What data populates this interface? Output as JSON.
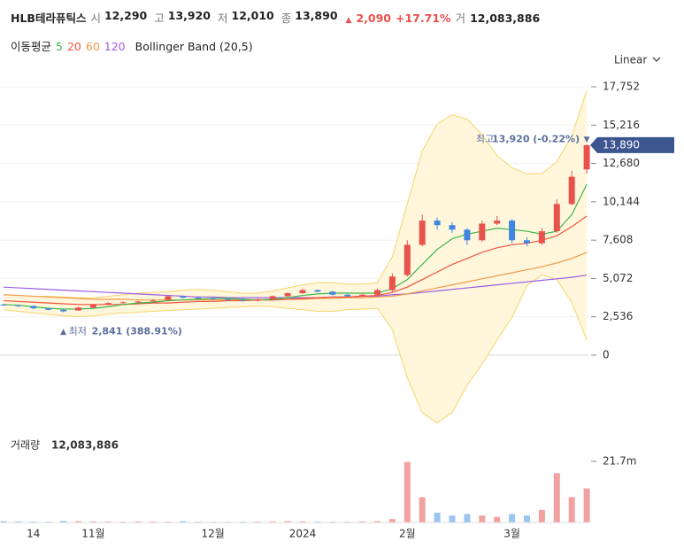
{
  "header": {
    "name": "HLB테라퓨틱스",
    "items": [
      {
        "label": "시",
        "value": "12,290"
      },
      {
        "label": "고",
        "value": "13,920"
      },
      {
        "label": "저",
        "value": "12,010"
      },
      {
        "label": "종",
        "value": "13,890"
      }
    ],
    "change": {
      "arrow": "▲",
      "amount": "2,090",
      "pct": "+17.71%"
    },
    "volume": {
      "label": "거",
      "value": "12,083,886"
    }
  },
  "chart_data": {
    "type": "candlestick",
    "scale_mode": "Linear",
    "ma_label": "이동평균",
    "categories": [
      null,
      null,
      "14",
      null,
      null,
      null,
      "11월",
      null,
      null,
      null,
      null,
      null,
      null,
      null,
      "12월",
      null,
      null,
      null,
      null,
      null,
      "2024",
      null,
      null,
      null,
      null,
      null,
      null,
      "2월",
      null,
      null,
      null,
      null,
      null,
      null,
      "3월",
      null,
      null,
      null,
      null,
      null
    ],
    "open": [
      3350,
      3300,
      3250,
      3100,
      3000,
      2950,
      3150,
      3350,
      3450,
      3500,
      3550,
      3650,
      3900,
      3800,
      3750,
      3700,
      3650,
      3600,
      3700,
      3900,
      4100,
      4300,
      4200,
      4000,
      3900,
      4000,
      4300,
      5300,
      7300,
      8900,
      8600,
      8300,
      7600,
      8700,
      8900,
      7600,
      7400,
      8200,
      10000,
      12290
    ],
    "high": [
      3400,
      3350,
      3300,
      3150,
      3050,
      3200,
      3400,
      3500,
      3550,
      3600,
      3700,
      3950,
      3950,
      3850,
      3800,
      3750,
      3700,
      3750,
      3950,
      4150,
      4400,
      4350,
      4250,
      4050,
      4050,
      4400,
      5400,
      7600,
      9300,
      9100,
      8800,
      8400,
      8900,
      9200,
      9000,
      7800,
      8400,
      10300,
      12200,
      13920
    ],
    "low": [
      3250,
      3200,
      3050,
      2950,
      2841,
      2950,
      3100,
      3300,
      3400,
      3450,
      3500,
      3600,
      3750,
      3700,
      3650,
      3600,
      3550,
      3550,
      3650,
      3850,
      4050,
      4150,
      3950,
      3850,
      3850,
      3950,
      4200,
      5200,
      7200,
      8300,
      8100,
      7300,
      7500,
      8600,
      7400,
      7200,
      7300,
      8100,
      9900,
      12010
    ],
    "close": [
      3300,
      3250,
      3100,
      3000,
      2900,
      3150,
      3350,
      3450,
      3500,
      3550,
      3600,
      3900,
      3800,
      3750,
      3700,
      3650,
      3600,
      3700,
      3900,
      4100,
      4300,
      4200,
      4000,
      3900,
      4000,
      4300,
      5200,
      7300,
      8900,
      8600,
      8300,
      7600,
      8700,
      8900,
      7600,
      7400,
      8200,
      10000,
      11800,
      13890
    ],
    "up_color": "#e8524c",
    "down_color": "#3f86dc",
    "lines": [
      {
        "name": 5,
        "color": "#3bb54a",
        "values": [
          3350,
          3300,
          3200,
          3100,
          3050,
          3050,
          3100,
          3200,
          3350,
          3450,
          3500,
          3600,
          3650,
          3700,
          3750,
          3750,
          3700,
          3650,
          3700,
          3800,
          3950,
          4050,
          4100,
          4100,
          4100,
          4100,
          4400,
          5000,
          6000,
          7000,
          7700,
          8000,
          8200,
          8400,
          8300,
          8200,
          8000,
          8200,
          9300,
          11300
        ]
      },
      {
        "name": 20,
        "color": "#f0543c",
        "values": [
          3600,
          3550,
          3500,
          3450,
          3400,
          3350,
          3350,
          3350,
          3350,
          3400,
          3450,
          3450,
          3500,
          3550,
          3550,
          3600,
          3600,
          3650,
          3650,
          3700,
          3750,
          3800,
          3850,
          3850,
          3900,
          3950,
          4150,
          4500,
          5000,
          5500,
          6000,
          6400,
          6800,
          7100,
          7300,
          7400,
          7600,
          7900,
          8500,
          9200
        ]
      },
      {
        "name": 60,
        "color": "#f29a4a",
        "values": [
          4000,
          3950,
          3900,
          3850,
          3800,
          3750,
          3700,
          3700,
          3700,
          3650,
          3650,
          3650,
          3650,
          3650,
          3650,
          3650,
          3650,
          3650,
          3650,
          3700,
          3700,
          3750,
          3750,
          3800,
          3800,
          3850,
          3900,
          4050,
          4250,
          4450,
          4650,
          4850,
          5050,
          5250,
          5450,
          5650,
          5850,
          6100,
          6400,
          6800
        ]
      },
      {
        "name": 120,
        "color": "#9b5de5",
        "values": [
          4500,
          4450,
          4400,
          4350,
          4300,
          4250,
          4200,
          4150,
          4100,
          4050,
          4000,
          3950,
          3900,
          3850,
          3850,
          3800,
          3800,
          3800,
          3800,
          3800,
          3800,
          3800,
          3850,
          3850,
          3900,
          3900,
          4000,
          4050,
          4150,
          4250,
          4350,
          4450,
          4550,
          4650,
          4750,
          4850,
          4950,
          5050,
          5150,
          5300
        ]
      }
    ],
    "bollinger": {
      "name": "Bollinger Band (20,5)",
      "color": "#f5d56a",
      "fill": "#fff6dc",
      "upper": [
        4000,
        3950,
        3900,
        3900,
        3850,
        3800,
        3800,
        3900,
        4000,
        4100,
        4150,
        4200,
        4300,
        4350,
        4300,
        4200,
        4100,
        4100,
        4250,
        4450,
        4650,
        4800,
        4800,
        4700,
        4700,
        4800,
        6500,
        10000,
        13500,
        15300,
        15900,
        15600,
        14600,
        13200,
        12400,
        12000,
        12000,
        12800,
        14500,
        17500
      ],
      "lower": [
        3000,
        2900,
        2800,
        2700,
        2600,
        2550,
        2600,
        2700,
        2800,
        2850,
        2900,
        2950,
        3000,
        3050,
        3100,
        3150,
        3200,
        3250,
        3200,
        3100,
        3000,
        2900,
        2900,
        3000,
        3050,
        3100,
        1700,
        -1500,
        -3800,
        -4500,
        -3800,
        -2000,
        -600,
        1000,
        2500,
        4600,
        5300,
        5000,
        3500,
        1000
      ]
    },
    "ylim": [
      -4628,
      18807
    ],
    "yticks": [
      {
        "value": 17752,
        "label": "17,752"
      },
      {
        "value": 15216,
        "label": "15,216"
      },
      {
        "value": 12680,
        "label": "12,680"
      },
      {
        "value": 10144,
        "label": "10,144"
      },
      {
        "value": 7608,
        "label": "7,608"
      },
      {
        "value": 5072,
        "label": "5,072"
      },
      {
        "value": 2536,
        "label": "2,536"
      },
      0
    ],
    "grid": true,
    "last_price_label": "13,890",
    "high_annotation": {
      "label": "최고",
      "text": "13,920 (-0.22%)",
      "arrow": "▼"
    },
    "low_annotation": {
      "arrow": "▲",
      "label": "최저",
      "text": "2,841 (388.91%)"
    },
    "volume": {
      "label": "거래량",
      "last": "12,083,886",
      "values": [
        500000,
        400000,
        350000,
        300000,
        600000,
        500000,
        400000,
        350000,
        300000,
        400000,
        350000,
        300000,
        500000,
        300000,
        250000,
        250000,
        300000,
        350000,
        400000,
        500000,
        400000,
        350000,
        300000,
        300000,
        400000,
        500000,
        1200000,
        21500000,
        9000000,
        3500000,
        2500000,
        3000000,
        2500000,
        2000000,
        3000000,
        2500000,
        4500000,
        17500000,
        9000000,
        12083886
      ],
      "up_color": "#f2a1a1",
      "down_color": "#9cc4f0",
      "ylim": [
        0,
        31400000
      ],
      "yticks": [
        {
          "value": 21700000,
          "label": "21.7m"
        }
      ]
    }
  }
}
